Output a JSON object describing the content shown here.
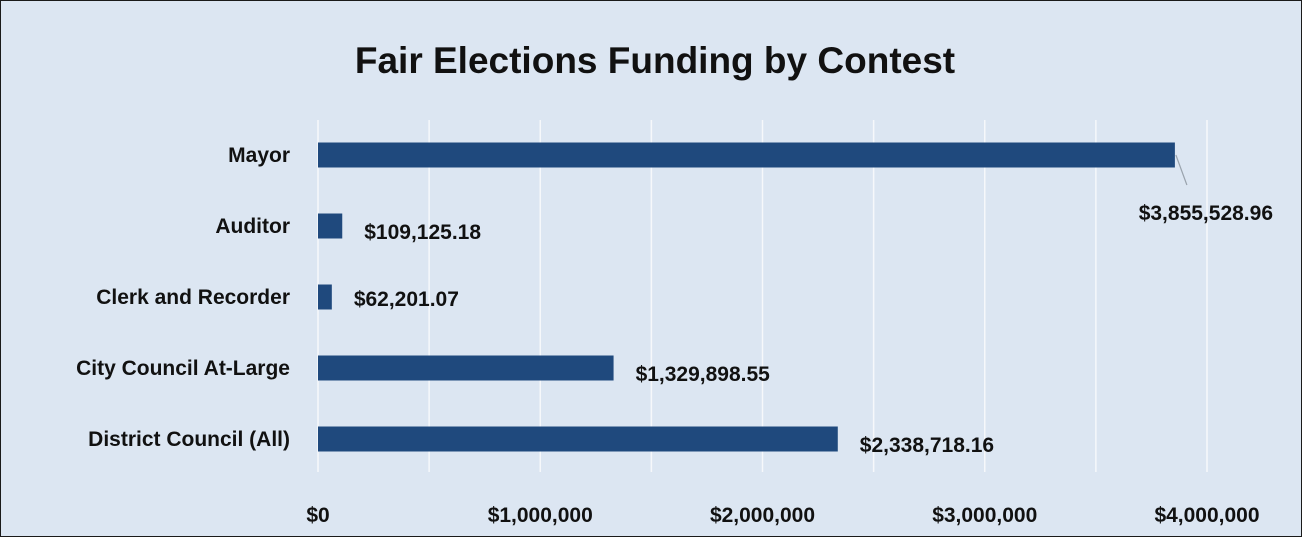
{
  "chart_data": {
    "type": "bar",
    "orientation": "horizontal",
    "title": "Fair Elections Funding by Contest",
    "xlabel": "",
    "ylabel": "",
    "categories": [
      "Mayor",
      "Auditor",
      "Clerk and Recorder",
      "City Council At-Large",
      "District Council (All)"
    ],
    "values": [
      3855528.96,
      109125.18,
      62201.07,
      1329898.55,
      2338718.16
    ],
    "value_labels": [
      "$3,855,528.96",
      "$109,125.18",
      "$62,201.07",
      "$1,329,898.55",
      "$2,338,718.16"
    ],
    "xlim": [
      0,
      4000000
    ],
    "xticks": [
      0,
      1000000,
      2000000,
      3000000,
      4000000
    ],
    "xtick_labels": [
      "$0",
      "$1,000,000",
      "$2,000,000",
      "$3,000,000",
      "$4,000,000"
    ],
    "grid": true,
    "legend": "none",
    "colors": {
      "bar": "#1f497d",
      "background": "#dce6f2",
      "gridline": "#f6f8fb",
      "leader": "#9aa3ad"
    }
  }
}
